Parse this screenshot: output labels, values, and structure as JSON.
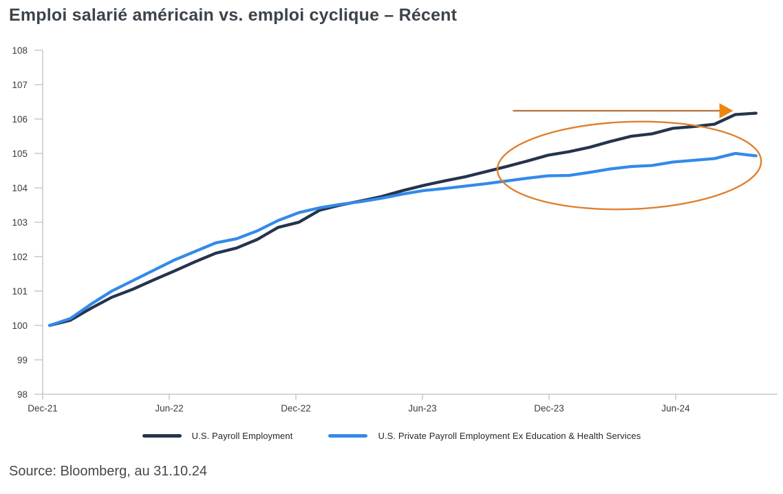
{
  "title": "Emploi salarié américain vs. emploi cyclique – Récent",
  "source_note": "Source: Bloomberg, au 31.10.24",
  "colors": {
    "title_text": "#3c434b",
    "axis_line": "#c9c9c9",
    "axis_text": "#3b3b3b",
    "source_text": "#43484c",
    "navy_series": "#24344c",
    "blue_series": "#338ae8",
    "orange_annotation": "#df7f2e",
    "arrow_line": "#b5713c",
    "arrow_head": "#ee8511"
  },
  "legend": {
    "items": [
      {
        "label": "U.S. Payroll Employment",
        "color": "#24344c"
      },
      {
        "label": "U.S. Private Payroll Employment Ex Education & Health Services",
        "color": "#338ae8"
      }
    ]
  },
  "chart_data": {
    "type": "line",
    "title": "Emploi salarié américain vs. emploi cyclique – Récent",
    "xlabel": "",
    "ylabel": "",
    "grid": false,
    "legend_position": "bottom",
    "ylim": [
      98,
      108
    ],
    "y_ticks": [
      98,
      99,
      100,
      101,
      102,
      103,
      104,
      105,
      106,
      107,
      108
    ],
    "x": [
      "Dec-21",
      "Jan-22",
      "Feb-22",
      "Mar-22",
      "Apr-22",
      "May-22",
      "Jun-22",
      "Jul-22",
      "Aug-22",
      "Sep-22",
      "Oct-22",
      "Nov-22",
      "Dec-22",
      "Jan-23",
      "Feb-23",
      "Mar-23",
      "Apr-23",
      "May-23",
      "Jun-23",
      "Jul-23",
      "Aug-23",
      "Sep-23",
      "Oct-23",
      "Nov-23",
      "Dec-23",
      "Jan-24",
      "Feb-24",
      "Mar-24",
      "Apr-24",
      "May-24",
      "Jun-24",
      "Jul-24",
      "Aug-24",
      "Sep-24",
      "Oct-24"
    ],
    "x_tick_labels": [
      "Dec-21",
      "Jun-22",
      "Dec-22",
      "Jun-23",
      "Dec-23",
      "Jun-24"
    ],
    "x_tick_indices": [
      0,
      6,
      12,
      18,
      24,
      30
    ],
    "series": [
      {
        "name": "U.S. Payroll Employment",
        "color": "#24344c",
        "values": [
          100.0,
          100.15,
          100.5,
          100.82,
          101.05,
          101.32,
          101.58,
          101.85,
          102.1,
          102.25,
          102.5,
          102.85,
          103.0,
          103.35,
          103.5,
          103.62,
          103.75,
          103.92,
          104.07,
          104.2,
          104.32,
          104.47,
          104.62,
          104.78,
          104.95,
          105.05,
          105.18,
          105.35,
          105.5,
          105.57,
          105.73,
          105.78,
          105.85,
          106.13,
          106.17
        ]
      },
      {
        "name": "U.S. Private Payroll Employment Ex Education & Health Services",
        "color": "#338ae8",
        "values": [
          100.0,
          100.2,
          100.62,
          101.0,
          101.3,
          101.6,
          101.9,
          102.15,
          102.4,
          102.52,
          102.75,
          103.05,
          103.28,
          103.42,
          103.52,
          103.6,
          103.7,
          103.82,
          103.92,
          103.98,
          104.05,
          104.12,
          104.2,
          104.28,
          104.35,
          104.36,
          104.45,
          104.55,
          104.62,
          104.65,
          104.75,
          104.8,
          104.85,
          105.0,
          104.93
        ]
      }
    ],
    "annotations": [
      {
        "kind": "arrow",
        "direction": "right",
        "line_color": "#b5713c",
        "head_color": "#ee8511",
        "y_value": 106.24,
        "x_start_index": 22.3,
        "x_end_index": 32.9
      },
      {
        "kind": "ellipse",
        "color": "#df7f2e",
        "cx_index": 27.9,
        "cy_value": 104.65,
        "rx_index_units": 6.35,
        "ry_value_units": 1.27,
        "rotation_deg": -2
      }
    ]
  }
}
